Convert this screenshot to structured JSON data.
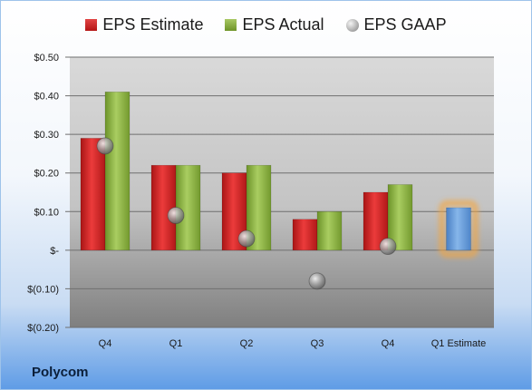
{
  "company": "Polycom",
  "chart_data": {
    "type": "bar",
    "categories": [
      "Q4",
      "Q1",
      "Q2",
      "Q3",
      "Q4",
      "Q1 Estimate"
    ],
    "series": [
      {
        "name": "EPS Estimate",
        "values": [
          0.29,
          0.22,
          0.2,
          0.08,
          0.15,
          null
        ],
        "color": "#d42a2a"
      },
      {
        "name": "EPS Actual",
        "values": [
          0.41,
          0.22,
          0.22,
          0.1,
          0.17,
          null
        ],
        "color": "#8db441"
      },
      {
        "name": "EPS GAAP",
        "values": [
          0.27,
          0.09,
          0.03,
          -0.08,
          0.01,
          null
        ],
        "color": "#b5b5b5"
      }
    ],
    "estimate_bar": {
      "category": "Q1 Estimate",
      "value": 0.11,
      "color": "#5b93d6",
      "glow": "#f4a640"
    },
    "ylim": [
      -0.2,
      0.5
    ],
    "yticks": [
      {
        "value": 0.5,
        "label": "$0.50"
      },
      {
        "value": 0.4,
        "label": "$0.40"
      },
      {
        "value": 0.3,
        "label": "$0.30"
      },
      {
        "value": 0.2,
        "label": "$0.20"
      },
      {
        "value": 0.1,
        "label": "$0.10"
      },
      {
        "value": 0.0,
        "label": "$-"
      },
      {
        "value": -0.1,
        "label": "$(0.10)"
      },
      {
        "value": -0.2,
        "label": "$(0.20)"
      }
    ],
    "legend_position": "top",
    "grid": true
  }
}
